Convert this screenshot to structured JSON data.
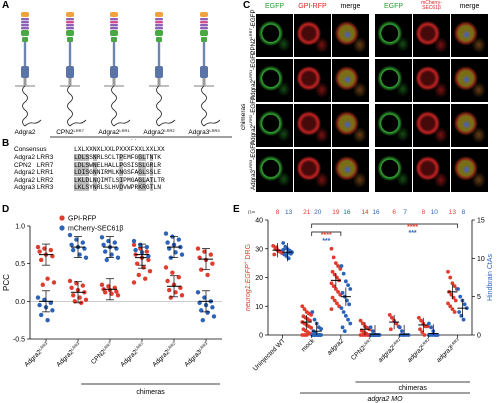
{
  "panels": {
    "A": "A",
    "B": "B",
    "C": "C",
    "D": "D",
    "E": "E"
  },
  "panelA": {
    "constructs": [
      "Adgra2",
      "CPN2LRR7",
      "Adgra2LRR1",
      "Adgra2LRR2",
      "Adgra3LRR3"
    ],
    "construct_names": [
      {
        "base": "Adgra2",
        "sup": ""
      },
      {
        "base": "CPN2",
        "sup": "LRR7"
      },
      {
        "base": "Adgra2",
        "sup": "LRR1"
      },
      {
        "base": "Adgra2",
        "sup": "LRR2"
      },
      {
        "base": "Adgra3",
        "sup": "LRR3"
      }
    ],
    "group_label": "chimeras",
    "colors": {
      "head": "#f2a23c",
      "lrr": "#8b62b8",
      "mid": "#4aa844",
      "stalk": "#6e86b0",
      "tm": "#9b9b9b"
    }
  },
  "panelB": {
    "consensus_label": "Consensus",
    "consensus_seq": "LXLXXNXLXXLPXXXFXXLXXLXX",
    "rows": [
      {
        "name": "Adgra2 LRR3",
        "seq": "LDLSSNRLSCLTPEMFGGLTNTK"
      },
      {
        "name": "CPN2   LRR7",
        "seq": "LDLSWNELHALLPGSISSLGRLR"
      },
      {
        "name": "Adgra2 LRR1",
        "seq": "LDISGNNIRMLKNGSFAGLSSLE"
      },
      {
        "name": "Adgra2 LRR2",
        "seq": "LKLDLNQIMTLSIPMGAGLATLTR"
      },
      {
        "name": "Adgra3 LRR3",
        "seq": "LKLSYNRLSLHVDVWPRKRGTLN"
      }
    ]
  },
  "panelC": {
    "left_titles": [
      "EGFP",
      "GPI-RFP",
      "merge"
    ],
    "right_titles": [
      "EGFP",
      "mCherry-SEC61β",
      "merge"
    ],
    "rows": [
      {
        "base": "CPN2",
        "sup": "LRR7",
        "suffix": "-EGFP"
      },
      {
        "base": "Adgra2",
        "sup": "LRR1",
        "suffix": "-EGFP"
      },
      {
        "base": "Adgra2",
        "sup": "LRR2",
        "suffix": "-EGFP"
      },
      {
        "base": "Adgra3",
        "sup": "LRR3",
        "suffix": "-EGFP"
      }
    ],
    "side_label": "chimeras"
  },
  "panelD": {
    "legend": [
      {
        "label": "GPI-RFP",
        "color": "#e23b2e"
      },
      {
        "label": "mCherry-SEC61β",
        "color": "#2b63b8"
      }
    ],
    "ylabel": "PCC",
    "ytick_labels": [
      "-0.5",
      "0.0",
      "0.5",
      "1.0"
    ],
    "group_label": "chimeras",
    "categories": [
      {
        "base": "Adgra2",
        "sup": "LRR3"
      },
      {
        "base": "Adgra2",
        "sup": "LRR3"
      },
      {
        "base": "CPN2",
        "sup": "LRR7"
      },
      {
        "base": "Adgra2",
        "sup": "LRR1"
      },
      {
        "base": "Adgra2",
        "sup": "LRR2"
      },
      {
        "base": "Adgra3",
        "sup": "LRR3"
      }
    ]
  },
  "panelE": {
    "n_label": "n=",
    "n_pairs": [
      [
        "8",
        "13"
      ],
      [
        "21",
        "20"
      ],
      [
        "19",
        "16"
      ],
      [
        "14",
        "16"
      ],
      [
        "6",
        "7"
      ],
      [
        "8",
        "10"
      ],
      [
        "13",
        "8"
      ]
    ],
    "ylabel_left_italic": "neurog1:EGFP",
    "ylabel_left_plus": "+",
    "ylabel_left_rest": " DRG",
    "ylabel_right": "Hindbrain CtAs",
    "left_ticks": [
      "0",
      "10",
      "20",
      "30",
      "40"
    ],
    "right_ticks": [
      "0",
      "5",
      "10",
      "15"
    ],
    "categories": [
      {
        "base": "Uninjected WT",
        "sup": "",
        "italic": false
      },
      {
        "base": "mock",
        "sup": "",
        "italic": false
      },
      {
        "base": "adgra2",
        "sup": "",
        "italic": true
      },
      {
        "base": "CPN2",
        "sup": "LRR7",
        "italic": false
      },
      {
        "base": "adgra2",
        "sup": "LRR1",
        "italic": true
      },
      {
        "base": "adgra2",
        "sup": "LRR2",
        "italic": true
      },
      {
        "base": "adgra3",
        "sup": "LRR3",
        "italic": true
      }
    ],
    "significance": [
      {
        "text": "****",
        "color": "#e23b2e"
      },
      {
        "text": "***",
        "color": "#2b63b8"
      },
      {
        "text": "****",
        "color": "#e23b2e"
      },
      {
        "text": "***",
        "color": "#2b63b8"
      }
    ],
    "group_label": "chimeras",
    "mo_label": "adgra2 MO"
  },
  "chart_data": [
    {
      "panel": "D",
      "type": "scatter",
      "ylabel": "PCC",
      "ylim": [
        -0.5,
        1.0
      ],
      "categories": [
        "Adgra2LRR3",
        "Adgra2LRR3",
        "CPN2LRR7",
        "Adgra2LRR1",
        "Adgra2LRR2",
        "Adgra3LRR3"
      ],
      "series": [
        {
          "name": "GPI-RFP",
          "color": "#e23b2e",
          "values": [
            [
              0.72,
              0.7,
              0.68,
              0.66,
              0.62,
              0.6,
              0.55,
              0.3,
              0.25,
              0.22
            ],
            [
              0.27,
              0.24,
              0.21,
              0.18,
              0.15,
              0.12,
              0.08,
              0.05,
              0.02,
              0.0,
              -0.02
            ],
            [
              0.22,
              0.2,
              0.18,
              0.16,
              0.15,
              0.13,
              0.12,
              0.1,
              0.08
            ],
            [
              0.75,
              0.7,
              0.66,
              0.62,
              0.58,
              0.55,
              0.5,
              0.45,
              0.4,
              0.35,
              0.3,
              0.25
            ],
            [
              0.45,
              0.38,
              0.32,
              0.27,
              0.22,
              0.18,
              0.15,
              0.12,
              0.08,
              0.05
            ],
            [
              0.7,
              0.66,
              0.62,
              0.58,
              0.55,
              0.5,
              0.42,
              0.35
            ]
          ],
          "means": [
            0.62,
            0.12,
            0.16,
            0.58,
            0.2,
            0.56
          ]
        },
        {
          "name": "mCherry-SEC61β",
          "color": "#2b63b8",
          "values": [
            [
              0.05,
              0.02,
              -0.02,
              -0.05,
              -0.08,
              -0.12,
              -0.18,
              -0.25
            ],
            [
              0.88,
              0.82,
              0.78,
              0.75,
              0.72,
              0.7,
              0.68,
              0.62,
              0.58
            ],
            [
              0.85,
              0.8,
              0.78,
              0.75,
              0.72,
              0.7,
              0.66,
              0.62,
              0.58,
              0.55
            ],
            [
              0.8,
              0.75,
              0.72,
              0.68,
              0.65,
              0.6
            ],
            [
              0.9,
              0.86,
              0.82,
              0.78,
              0.75,
              0.72,
              0.7,
              0.65,
              0.62,
              0.58
            ],
            [
              0.12,
              0.05,
              0.0,
              -0.02,
              -0.05,
              -0.08,
              -0.12,
              -0.15,
              -0.2,
              -0.25
            ]
          ],
          "means": [
            0.0,
            0.72,
            0.72,
            0.62,
            0.72,
            0.0
          ]
        }
      ]
    },
    {
      "panel": "E",
      "type": "scatter",
      "ylabel_left": "neurog1:EGFP+ DRG",
      "ylabel_right": "Hindbrain CtAs",
      "ylim_left": [
        0,
        40
      ],
      "ylim_right": [
        0,
        15
      ],
      "categories": [
        "Uninjected WT",
        "mock",
        "adgra2",
        "CPN2LRR7",
        "adgra2LRR1",
        "adgra2LRR2",
        "adgra3LRR3"
      ],
      "series": [
        {
          "name": "neurog1:EGFP+ DRG",
          "axis": "left",
          "color": "#e23b2e",
          "values": [
            [
              31,
              30,
              29.5,
              29,
              28.5,
              28,
              30.5,
              29.2
            ],
            [
              10,
              9,
              8,
              7.5,
              7,
              6.5,
              6,
              5.5,
              5,
              4.5,
              4,
              3.5,
              3,
              2.5,
              2,
              1.5,
              1,
              0.5,
              0,
              0,
              0
            ],
            [
              30,
              27,
              25,
              24,
              23,
              22,
              21,
              20,
              19,
              18,
              17,
              16,
              15,
              14,
              13,
              12,
              11,
              10,
              9
            ],
            [
              5,
              4,
              3,
              2.5,
              2,
              1.5,
              1,
              0.5,
              0,
              0,
              0,
              0,
              0,
              0
            ],
            [
              7,
              6,
              5,
              4,
              3,
              2
            ],
            [
              6,
              5,
              4,
              3,
              3,
              2,
              1,
              0
            ],
            [
              22,
              20,
              18,
              17,
              16,
              15,
              14,
              13,
              12,
              11,
              10,
              9,
              8
            ]
          ],
          "means": [
            29.5,
            4.5,
            19,
            2,
            4.5,
            3.5,
            15
          ]
        },
        {
          "name": "Hindbrain CtAs",
          "axis": "right",
          "color": "#2b63b8",
          "values": [
            [
              12,
              11.5,
              11.2,
              11,
              10.8,
              10.5,
              10.3,
              10,
              10.6,
              11.1,
              11.3,
              10.7,
              10.9
            ],
            [
              3,
              2,
              1.5,
              1,
              0.8,
              0.5,
              0.3,
              0,
              0,
              0,
              0,
              0,
              0,
              0,
              0,
              0,
              0,
              0,
              0,
              0
            ],
            [
              9,
              8,
              7,
              6.5,
              6,
              5.5,
              5,
              4.5,
              4,
              3.5,
              3,
              2.5,
              2,
              1.5,
              1,
              0.5
            ],
            [
              1,
              0.5,
              0,
              0,
              0,
              0,
              0,
              0,
              0,
              0,
              0,
              0,
              0,
              0,
              0,
              0
            ],
            [
              1,
              0.5,
              0,
              0,
              0,
              0,
              0
            ],
            [
              1.5,
              1,
              0.5,
              0,
              0,
              0,
              0,
              0,
              0,
              0
            ],
            [
              6,
              5,
              4.5,
              4,
              3.5,
              3,
              2.5,
              2
            ]
          ],
          "means": [
            10.8,
            0.5,
            5,
            0.1,
            0.1,
            0.2,
            3.5
          ]
        }
      ]
    }
  ]
}
